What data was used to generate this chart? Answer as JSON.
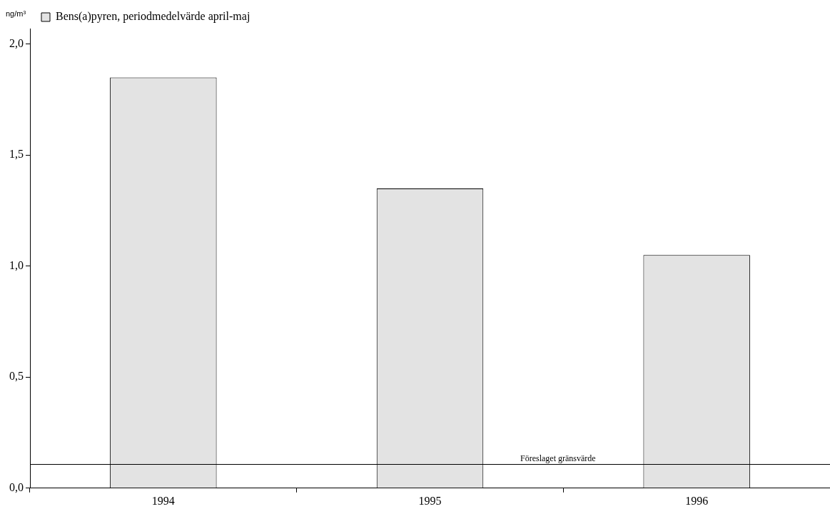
{
  "chart_data": {
    "type": "bar",
    "ylabel": "ng/m³",
    "categories": [
      "1994",
      "1995",
      "1996"
    ],
    "series": [
      {
        "name": "Bens(a)pyren, periodmedelvärde april-maj",
        "color": "#e3e3e3",
        "values": [
          1.85,
          1.35,
          1.05
        ]
      }
    ],
    "ylim": [
      0,
      2.07
    ],
    "yticks": [
      {
        "value": 0,
        "label": "0,0"
      },
      {
        "value": 0.5,
        "label": "0,5"
      },
      {
        "value": 1,
        "label": "1,0"
      },
      {
        "value": 1.5,
        "label": "1,5"
      },
      {
        "value": 2,
        "label": "2,0"
      }
    ],
    "ref_lines": [
      {
        "axis": "y",
        "value": 0.11,
        "label": "Föreslaget gränsvärde",
        "color": "#000000"
      }
    ],
    "legend": "top left",
    "grid": false
  }
}
